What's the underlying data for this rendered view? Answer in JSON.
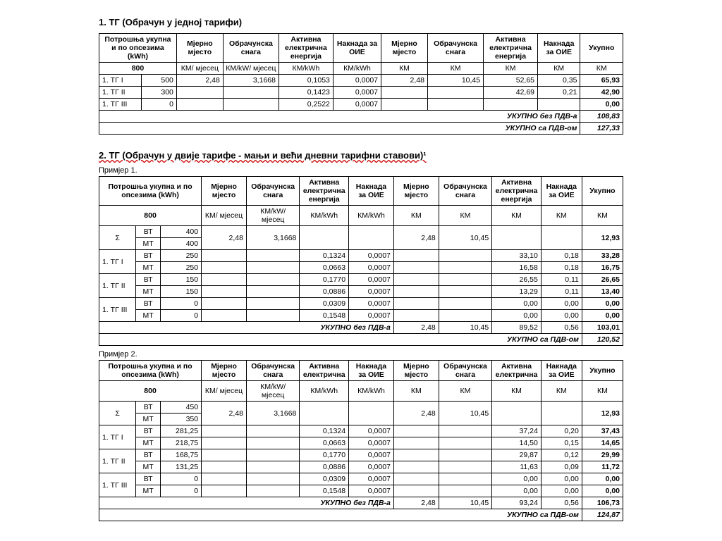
{
  "section1": {
    "title": "1. ТГ (Обрачун у једној тарифи)",
    "headers": {
      "h1": "Потрошња укупна и по опсезима (kWh)",
      "h2": "Мјерно мјесто",
      "h3": "Обрачунска снага",
      "h4": "Активна електрична енергија",
      "h5": "Накнада за ОИЕ",
      "h6": "Мјерно мјесто",
      "h7": "Обрачунска снага",
      "h8": "Активна електрична енергија",
      "h9": "Накнада за ОИЕ",
      "h10": "Укупно",
      "total": "800",
      "u2": "КМ/ мјесец",
      "u3": "КМ/kW/ мјесец",
      "u4": "КМ/kWh",
      "u5": "КМ/kWh",
      "u6": "КМ",
      "u7": "КМ",
      "u8": "КМ",
      "u9": "КМ",
      "u10": "КМ"
    },
    "rows": [
      {
        "label": "1. ТГ I",
        "val": "500",
        "mm": "2,48",
        "snaga": "3,1668",
        "ae": "0,1053",
        "oie": "0,0007",
        "mm2": "2,48",
        "snaga2": "10,45",
        "ae2": "52,65",
        "oie2": "0,35",
        "tot": "65,93"
      },
      {
        "label": "1. ТГ II",
        "val": "300",
        "mm": "",
        "snaga": "",
        "ae": "0,1423",
        "oie": "0,0007",
        "mm2": "",
        "snaga2": "",
        "ae2": "42,69",
        "oie2": "0,21",
        "tot": "42,90"
      },
      {
        "label": "1. ТГ III",
        "val": "0",
        "mm": "",
        "snaga": "",
        "ae": "0,2522",
        "oie": "0,0007",
        "mm2": "",
        "snaga2": "",
        "ae2": "",
        "oie2": "",
        "tot": "0,00"
      }
    ],
    "footer1": {
      "label": "УКУПНО без ПДВ-а",
      "val": "108,83"
    },
    "footer2": {
      "label": "УКУПНО са ПДВ-ом",
      "val": "127,33"
    }
  },
  "section2": {
    "title": "2. ТГ (Обрачун у двије тарифе - мањи и већи дневни тарифни ставови)¹",
    "ex1": {
      "label": "Примјер 1.",
      "headers": {
        "h1": "Потрошња укупна и по опсезима (kWh)",
        "h2": "Мјерно мјесто",
        "h3": "Обрачунска снага",
        "h4": "Активна електрична енергија",
        "h5": "Накнада за ОИЕ",
        "h6": "Мјерно мјесто",
        "h7": "Обрачунска снага",
        "h8": "Активна електрична енергија",
        "h9": "Накнада за ОИЕ",
        "h10": "Укупно",
        "total": "800",
        "u2": "КМ/ мјесец",
        "u3": "КМ/kW/ мјесец",
        "u4": "КМ/kWh",
        "u5": "КМ/kWh",
        "u6": "КМ",
        "u7": "КМ",
        "u8": "КМ",
        "u9": "КМ",
        "u10": "КМ"
      },
      "sigma": {
        "label": "Σ",
        "bt_lbl": "ВТ",
        "bt": "400",
        "mt_lbl": "МТ",
        "mt": "400",
        "mm": "2,48",
        "snaga": "3,1668",
        "mm2": "2,48",
        "snaga2": "10,45",
        "tot": "12,93"
      },
      "tg": [
        {
          "lbl": "1. ТГ I",
          "bt_lbl": "ВТ",
          "bt": "250",
          "mt_lbl": "МТ",
          "mt": "250",
          "ae_bt": "0,1324",
          "oie_bt": "0,0007",
          "ae2_bt": "33,10",
          "oie2_bt": "0,18",
          "tot_bt": "33,28",
          "ae_mt": "0,0663",
          "oie_mt": "0,0007",
          "ae2_mt": "16,58",
          "oie2_mt": "0,18",
          "tot_mt": "16,75"
        },
        {
          "lbl": "1. ТГ II",
          "bt_lbl": "ВТ",
          "bt": "150",
          "mt_lbl": "МТ",
          "mt": "150",
          "ae_bt": "0,1770",
          "oie_bt": "0,0007",
          "ae2_bt": "26,55",
          "oie2_bt": "0,11",
          "tot_bt": "26,65",
          "ae_mt": "0,0886",
          "oie_mt": "0,0007",
          "ae2_mt": "13,29",
          "oie2_mt": "0,11",
          "tot_mt": "13,40"
        },
        {
          "lbl": "1. ТГ III",
          "bt_lbl": "ВТ",
          "bt": "0",
          "mt_lbl": "МТ",
          "mt": "0",
          "ae_bt": "0,0309",
          "oie_bt": "0,0007",
          "ae2_bt": "0,00",
          "oie2_bt": "0,00",
          "tot_bt": "0,00",
          "ae_mt": "0,1548",
          "oie_mt": "0,0007",
          "ae2_mt": "0,00",
          "oie2_mt": "0,00",
          "tot_mt": "0,00"
        }
      ],
      "f1": {
        "label": "УКУПНО без ПДВ-а",
        "mm": "2,48",
        "snaga": "10,45",
        "ae": "89,52",
        "oie": "0,56",
        "tot": "103,01"
      },
      "f2": {
        "label": "УКУПНО са ПДВ-ом",
        "tot": "120,52"
      }
    },
    "ex2": {
      "label": "Примјер 2.",
      "headers": {
        "h1": "Потрошња укупна и по опсезима (kWh)",
        "h2": "Мјерно мјесто",
        "h3": "Обрачунска снага",
        "h4": "Активна електрична",
        "h5": "Накнада за ОИЕ",
        "h6": "Мјерно мјесто",
        "h7": "Обрачунска снага",
        "h8": "Активна електрична",
        "h9": "Накнада за ОИЕ",
        "h10": "Укупно",
        "total": "800",
        "u2": "КМ/ мјесец",
        "u3": "КМ/kW/ мјесец",
        "u4": "КМ/kWh",
        "u5": "КМ/kWh",
        "u6": "КМ",
        "u7": "КМ",
        "u8": "КМ",
        "u9": "КМ",
        "u10": "КМ"
      },
      "sigma": {
        "label": "Σ",
        "bt_lbl": "ВТ",
        "bt": "450",
        "mt_lbl": "МТ",
        "mt": "350",
        "mm": "2,48",
        "snaga": "3,1668",
        "mm2": "2,48",
        "snaga2": "10,45",
        "tot": "12,93"
      },
      "tg": [
        {
          "lbl": "1. ТГ I",
          "bt_lbl": "ВТ",
          "bt": "281,25",
          "mt_lbl": "МТ",
          "mt": "218,75",
          "ae_bt": "0,1324",
          "oie_bt": "0,0007",
          "ae2_bt": "37,24",
          "oie2_bt": "0,20",
          "tot_bt": "37,43",
          "ae_mt": "0,0663",
          "oie_mt": "0,0007",
          "ae2_mt": "14,50",
          "oie2_mt": "0,15",
          "tot_mt": "14,65"
        },
        {
          "lbl": "1. ТГ II",
          "bt_lbl": "ВТ",
          "bt": "168,75",
          "mt_lbl": "МТ",
          "mt": "131,25",
          "ae_bt": "0,1770",
          "oie_bt": "0,0007",
          "ae2_bt": "29,87",
          "oie2_bt": "0,12",
          "tot_bt": "29,99",
          "ae_mt": "0,0886",
          "oie_mt": "0,0007",
          "ae2_mt": "11,63",
          "oie2_mt": "0,09",
          "tot_mt": "11,72"
        },
        {
          "lbl": "1. ТГ III",
          "bt_lbl": "ВТ",
          "bt": "0",
          "mt_lbl": "МТ",
          "mt": "0",
          "ae_bt": "0,0309",
          "oie_bt": "0,0007",
          "ae2_bt": "0,00",
          "oie2_bt": "0,00",
          "tot_bt": "0,00",
          "ae_mt": "0,1548",
          "oie_mt": "0,0007",
          "ae2_mt": "0,00",
          "oie2_mt": "0,00",
          "tot_mt": "0,00"
        }
      ],
      "f1": {
        "label": "УКУПНО без ПДВ-а",
        "mm": "2,48",
        "snaga": "10,45",
        "ae": "93,24",
        "oie": "0,56",
        "tot": "106,73"
      },
      "f2": {
        "label": "УКУПНО са ПДВ-ом",
        "tot": "124,87"
      }
    }
  }
}
